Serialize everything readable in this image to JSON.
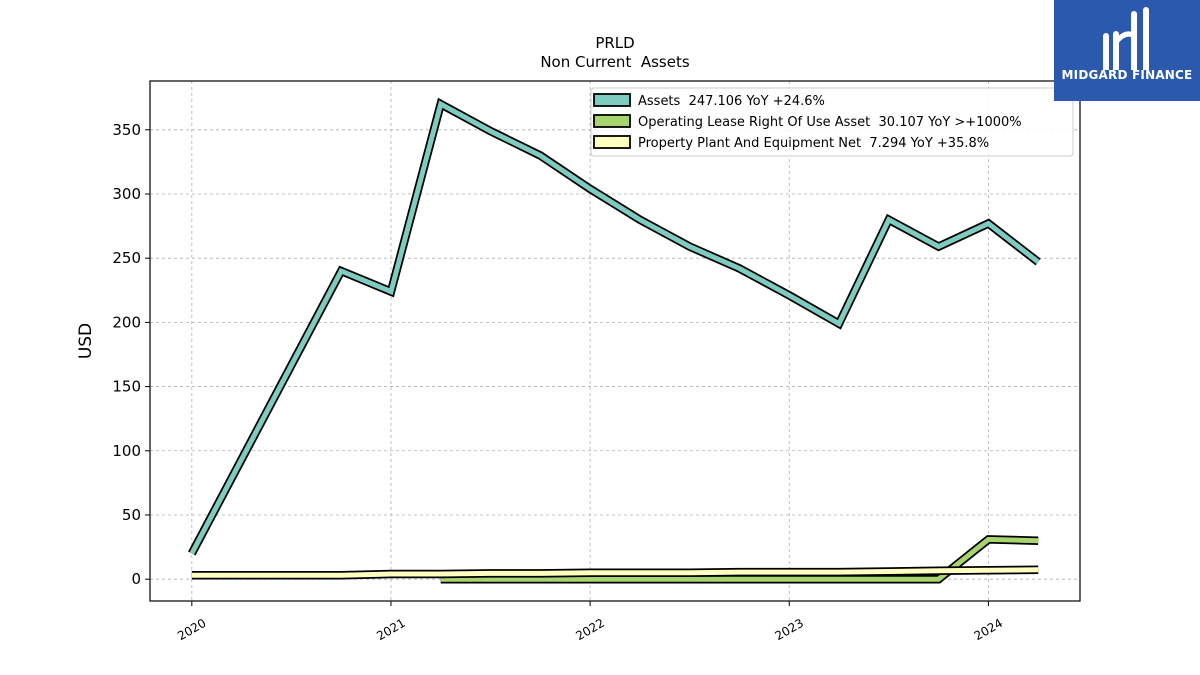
{
  "logo": {
    "name": "MIDGARD FINANCE"
  },
  "chart_data": {
    "type": "line",
    "title": "PRLD",
    "subtitle": "Non Current  Assets",
    "ylabel": "USD",
    "xlabel": "",
    "ylim": [
      -17,
      388
    ],
    "xlim": [
      2019.79,
      2024.46
    ],
    "yticks": [
      0,
      50,
      100,
      150,
      200,
      250,
      300,
      350
    ],
    "xticks": [
      {
        "value": 2020,
        "label": "2020"
      },
      {
        "value": 2021,
        "label": "2021"
      },
      {
        "value": 2022,
        "label": "2022"
      },
      {
        "value": 2023,
        "label": "2023"
      },
      {
        "value": 2024,
        "label": "2024"
      }
    ],
    "grid": true,
    "legend_position": "top-right",
    "series": [
      {
        "name": "Assets  247.106 YoY +24.6%",
        "color": "#7ecbbf",
        "points": [
          [
            2020.0,
            20
          ],
          [
            2020.75,
            240
          ],
          [
            2021.0,
            224
          ],
          [
            2021.25,
            370
          ],
          [
            2021.5,
            349
          ],
          [
            2021.75,
            330
          ],
          [
            2022.0,
            304
          ],
          [
            2022.25,
            280
          ],
          [
            2022.5,
            259
          ],
          [
            2022.75,
            242
          ],
          [
            2023.0,
            221
          ],
          [
            2023.25,
            199
          ],
          [
            2023.5,
            280
          ],
          [
            2023.75,
            259
          ],
          [
            2024.0,
            277
          ],
          [
            2024.25,
            247
          ]
        ]
      },
      {
        "name": "Operating Lease Right Of Use Asset  30.107 YoY >+1000%",
        "color": "#a8d46f",
        "points": [
          [
            2021.25,
            0
          ],
          [
            2021.5,
            0
          ],
          [
            2021.75,
            0
          ],
          [
            2022.0,
            0
          ],
          [
            2022.25,
            0
          ],
          [
            2022.5,
            0
          ],
          [
            2022.75,
            0
          ],
          [
            2023.0,
            0
          ],
          [
            2023.25,
            0
          ],
          [
            2023.5,
            0
          ],
          [
            2023.75,
            0
          ],
          [
            2024.0,
            31
          ],
          [
            2024.25,
            30
          ]
        ]
      },
      {
        "name": "Property Plant And Equipment Net  7.294 YoY +35.8%",
        "color": "#ffffc0",
        "points": [
          [
            2020.0,
            3
          ],
          [
            2020.75,
            3
          ],
          [
            2021.0,
            4
          ],
          [
            2021.25,
            4
          ],
          [
            2021.5,
            4.5
          ],
          [
            2021.75,
            4.5
          ],
          [
            2022.0,
            5
          ],
          [
            2022.25,
            5
          ],
          [
            2022.5,
            5
          ],
          [
            2022.75,
            5.5
          ],
          [
            2023.0,
            5.5
          ],
          [
            2023.25,
            5.5
          ],
          [
            2023.5,
            6
          ],
          [
            2023.75,
            6.5
          ],
          [
            2024.0,
            7
          ],
          [
            2024.25,
            7.3
          ]
        ]
      }
    ]
  }
}
